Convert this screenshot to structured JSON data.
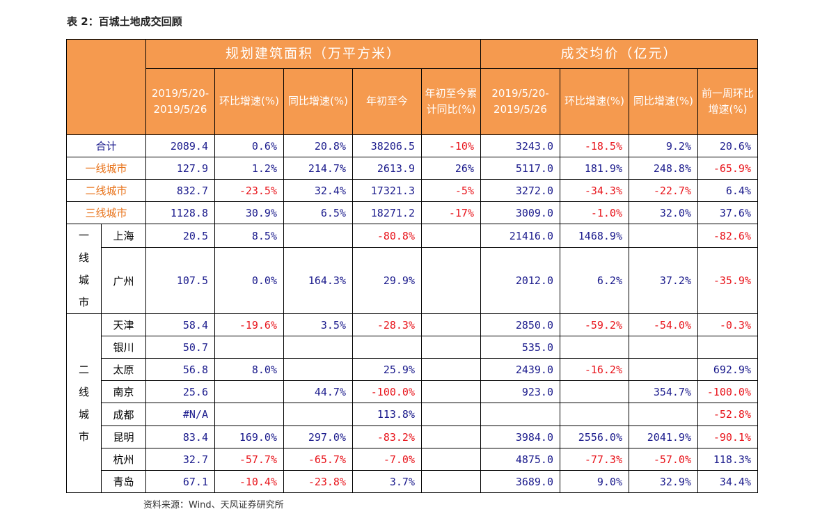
{
  "title": "表 2：百城土地成交回顾",
  "source": "资料来源：Wind、天风证券研究所",
  "header": {
    "group_area": "规划建筑面积（万平方米）",
    "group_price": "成交均价（亿元）",
    "area_cols": [
      "2019/5/20-2019/5/26",
      "环比增速(%)",
      "同比增速(%)",
      "年初至今",
      "年初至今累计同比(%)"
    ],
    "price_cols": [
      "2019/5/20-2019/5/26",
      "环比增速(%)",
      "同比增速(%)",
      "前一周环比增速(%)"
    ]
  },
  "summary_rows": [
    {
      "label": "合计",
      "values": [
        "2089.4",
        "0.6%",
        "20.8%",
        "38206.5",
        "-10%",
        "3243.0",
        "-18.5%",
        "9.2%",
        "20.6%"
      ]
    },
    {
      "label": "一线城市",
      "values": [
        "127.9",
        "1.2%",
        "214.7%",
        "2613.9",
        "26%",
        "5117.0",
        "181.9%",
        "248.8%",
        "-65.9%"
      ]
    },
    {
      "label": "二线城市",
      "values": [
        "832.7",
        "-23.5%",
        "32.4%",
        "17321.3",
        "-5%",
        "3272.0",
        "-34.3%",
        "-22.7%",
        "6.4%"
      ]
    },
    {
      "label": "三线城市",
      "values": [
        "1128.8",
        "30.9%",
        "6.5%",
        "18271.2",
        "-17%",
        "3009.0",
        "-1.0%",
        "32.0%",
        "37.6%"
      ]
    }
  ],
  "groups": [
    {
      "label": "一线城市",
      "cities": [
        {
          "name": "上海",
          "values": [
            "20.5",
            "8.5%",
            "",
            "-80.8%",
            "",
            "21416.0",
            "1468.9%",
            "",
            "-82.6%"
          ]
        },
        {
          "name": "广州",
          "values": [
            "107.5",
            "0.0%",
            "164.3%",
            "29.9%",
            "",
            "2012.0",
            "6.2%",
            "37.2%",
            "-35.9%"
          ]
        }
      ]
    },
    {
      "label": "二线城市",
      "cities": [
        {
          "name": "天津",
          "values": [
            "58.4",
            "-19.6%",
            "3.5%",
            "-28.3%",
            "",
            "2850.0",
            "-59.2%",
            "-54.0%",
            "-0.3%"
          ]
        },
        {
          "name": "银川",
          "values": [
            "50.7",
            "",
            "",
            "",
            "",
            "535.0",
            "",
            "",
            ""
          ]
        },
        {
          "name": "太原",
          "values": [
            "56.8",
            "8.0%",
            "",
            "25.9%",
            "",
            "2439.0",
            "-16.2%",
            "",
            "692.9%"
          ]
        },
        {
          "name": "南京",
          "values": [
            "25.6",
            "",
            "44.7%",
            "-100.0%",
            "",
            "923.0",
            "",
            "354.7%",
            "-100.0%"
          ]
        },
        {
          "name": "成都",
          "values": [
            "#N/A",
            "",
            "",
            "113.8%",
            "",
            "",
            "",
            "",
            "-52.8%"
          ]
        },
        {
          "name": "昆明",
          "values": [
            "83.4",
            "169.0%",
            "297.0%",
            "-83.2%",
            "",
            "3984.0",
            "2556.0%",
            "2041.9%",
            "-90.1%"
          ]
        },
        {
          "name": "杭州",
          "values": [
            "32.7",
            "-57.7%",
            "-65.7%",
            "-7.0%",
            "",
            "4875.0",
            "-77.3%",
            "-57.0%",
            "118.3%"
          ]
        },
        {
          "name": "青岛",
          "values": [
            "67.1",
            "-10.4%",
            "-23.8%",
            "3.7%",
            "",
            "3689.0",
            "9.0%",
            "32.9%",
            "34.4%"
          ]
        }
      ]
    }
  ],
  "colors": {
    "header_bg": "#f59a4f",
    "header_text": "#ffffff",
    "negative": "#e8141b",
    "positive": "#1a1a8c",
    "tier_label": "#e8741c"
  }
}
